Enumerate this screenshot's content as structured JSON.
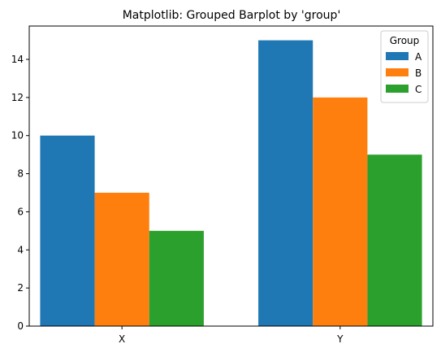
{
  "chart_data": {
    "type": "bar",
    "title": "Matplotlib: Grouped Barplot by 'group'",
    "xlabel": "",
    "ylabel": "",
    "categories": [
      "X",
      "Y"
    ],
    "series": [
      {
        "name": "A",
        "values": [
          10,
          15
        ],
        "color": "#1f77b4"
      },
      {
        "name": "B",
        "values": [
          7,
          12
        ],
        "color": "#ff7f0e"
      },
      {
        "name": "C",
        "values": [
          5,
          9
        ],
        "color": "#2ca02c"
      }
    ],
    "ylim": [
      0,
      15.75
    ],
    "yticks": [
      0,
      2,
      4,
      6,
      8,
      10,
      12,
      14
    ],
    "grid": false,
    "legend": {
      "title": "Group",
      "placement": "top-right"
    }
  }
}
